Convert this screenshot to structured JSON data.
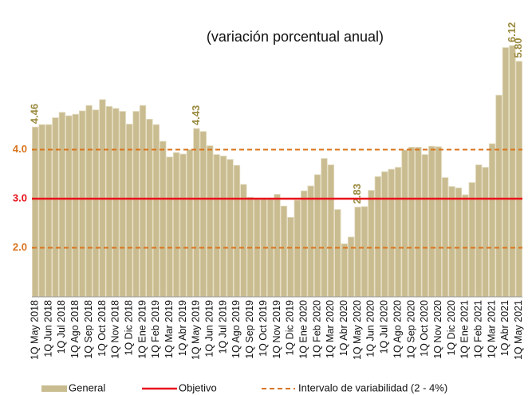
{
  "chart_data": {
    "type": "bar",
    "title": "(variación porcentual anual)",
    "categories": [
      "1Q May 2018",
      null,
      "1Q Jun 2018",
      null,
      "1Q Jul 2018",
      null,
      "1Q Ago 2018",
      null,
      "1Q Sep 2018",
      null,
      "1Q Oct 2018",
      null,
      "1Q Nov 2018",
      null,
      "1Q Dic 2018",
      null,
      "1Q Ene 2019",
      null,
      "1Q Feb 2019",
      null,
      "1Q Mar 2019",
      null,
      "1Q Abr 2019",
      null,
      "1Q May 2019",
      null,
      "1Q Jun 2019",
      null,
      "1Q Jul 2019",
      null,
      "1Q Ago 2019",
      null,
      "1Q Sep 2019",
      null,
      "1Q Oct 2019",
      null,
      "1Q Nov 2019",
      null,
      "1Q Dic 2019",
      null,
      "1Q Ene 2020",
      null,
      "1Q Feb 2020",
      null,
      "1Q Mar 2020",
      null,
      "1Q Abr 2020",
      null,
      "1Q May 2020",
      null,
      "1Q Jun 2020",
      null,
      "1Q Jul 2020",
      null,
      "1Q Ago 2020",
      null,
      "1Q Sep 2020",
      null,
      "1Q Oct 2020",
      null,
      "1Q Nov 2020",
      null,
      "1Q Dic 2020",
      null,
      "1Q Ene 2021",
      null,
      "1Q Feb 2021",
      null,
      "1Q Mar 2021",
      null,
      "1Q Abr 2021",
      null,
      "1Q May 2021"
    ],
    "series": [
      {
        "name": "General",
        "color": "#c9bc90",
        "values": [
          4.46,
          4.51,
          4.51,
          4.65,
          4.76,
          4.69,
          4.72,
          4.79,
          4.9,
          4.81,
          5.02,
          4.88,
          4.84,
          4.78,
          4.52,
          4.78,
          4.9,
          4.62,
          4.51,
          4.17,
          3.85,
          3.94,
          3.91,
          4.0,
          4.43,
          4.37,
          4.08,
          3.9,
          3.87,
          3.8,
          3.68,
          3.29,
          3.03,
          3.01,
          2.99,
          3.01,
          3.09,
          2.85,
          2.62,
          2.97,
          3.16,
          3.26,
          3.49,
          3.82,
          3.69,
          2.78,
          2.08,
          2.22,
          2.83,
          2.84,
          3.17,
          3.45,
          3.55,
          3.6,
          3.64,
          3.99,
          4.05,
          4.05,
          3.9,
          4.07,
          4.06,
          3.43,
          3.25,
          3.22,
          3.08,
          3.33,
          3.69,
          3.64,
          4.12,
          5.11,
          6.08,
          6.12,
          5.8
        ],
        "value_labels": [
          "4.46",
          null,
          null,
          null,
          null,
          null,
          null,
          null,
          null,
          null,
          null,
          null,
          null,
          null,
          null,
          null,
          null,
          null,
          null,
          null,
          null,
          null,
          null,
          null,
          "4.43",
          null,
          null,
          null,
          null,
          null,
          null,
          null,
          null,
          null,
          null,
          null,
          null,
          null,
          null,
          null,
          null,
          null,
          null,
          null,
          null,
          null,
          null,
          null,
          "2.83",
          null,
          null,
          null,
          null,
          null,
          null,
          null,
          null,
          null,
          null,
          null,
          null,
          null,
          null,
          null,
          null,
          null,
          null,
          null,
          null,
          null,
          null,
          "6.12",
          "5.80"
        ]
      }
    ],
    "objective": {
      "name": "Objetivo",
      "value": 3,
      "color": "#e8121b"
    },
    "range": {
      "name": "Intervalo de variabilidad (2 - 4%)",
      "values": [
        2,
        4
      ],
      "color": "#d9741e"
    },
    "label_color": "#9b8a3e",
    "ylim": [
      1,
      7
    ],
    "yticks": [
      {
        "value": 2,
        "label": "2.0"
      },
      {
        "value": 3,
        "label": "3.0"
      },
      {
        "value": 4,
        "label": "4.0"
      }
    ]
  }
}
